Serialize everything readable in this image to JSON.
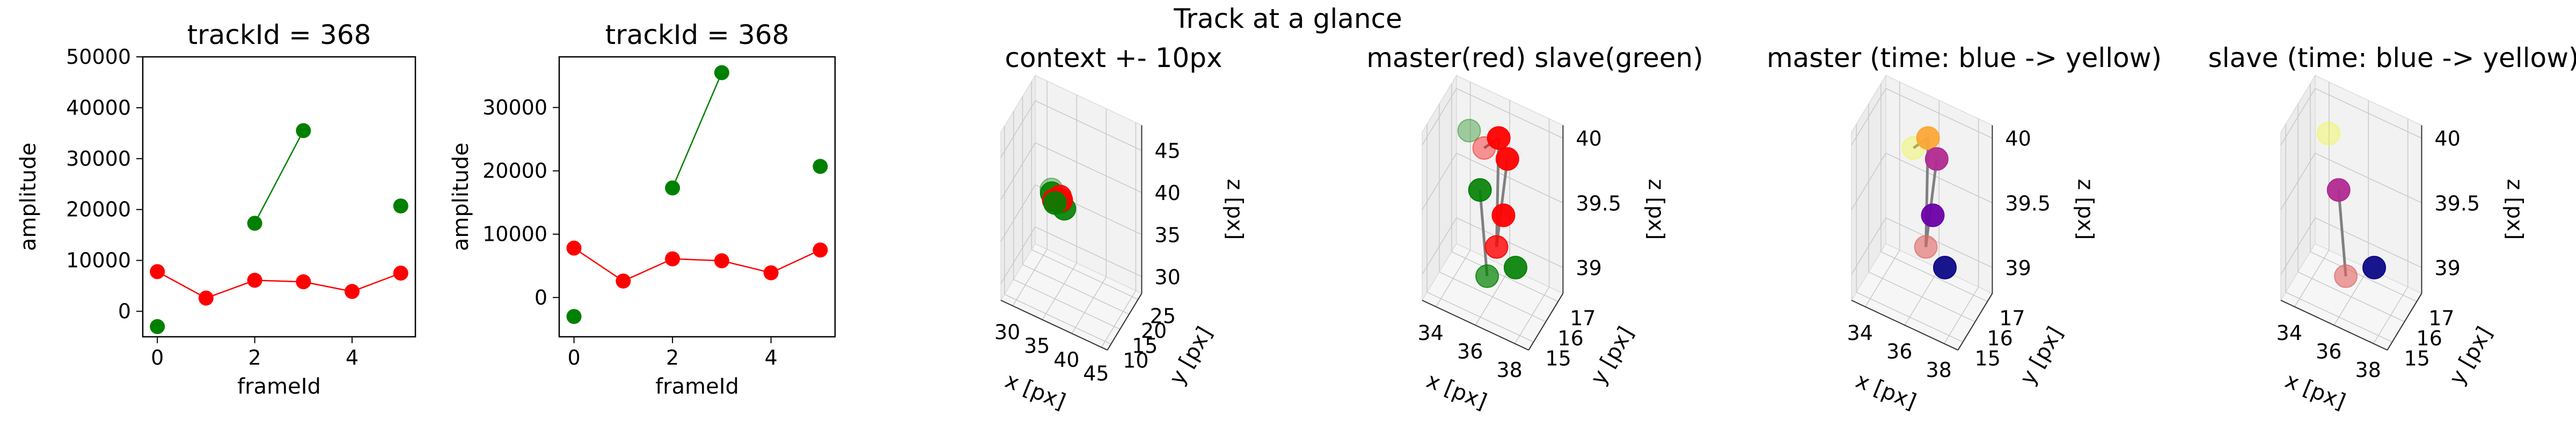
{
  "figure": {
    "suptitle": "Track at a glance"
  },
  "chart_data": [
    {
      "type": "line",
      "title": "trackId = 368",
      "xlabel": "frameId",
      "ylabel": "amplitude",
      "xlim": [
        -0.3,
        5.3
      ],
      "ylim": [
        -5000,
        50000
      ],
      "xticks": [
        0,
        2,
        4
      ],
      "yticks": [
        0,
        10000,
        20000,
        30000,
        40000,
        50000
      ],
      "series": [
        {
          "color": "#ff0000",
          "x": [
            0,
            1,
            2,
            3,
            4,
            5
          ],
          "y": [
            7800,
            2600,
            6100,
            5800,
            3900,
            7500
          ],
          "connected_segments": [
            [
              0,
              5
            ]
          ]
        },
        {
          "color": "#008000",
          "x": [
            0,
            2,
            3,
            5
          ],
          "y": [
            -3000,
            17300,
            35500,
            20700
          ],
          "connected_segments": [
            [
              1,
              2
            ]
          ]
        }
      ]
    },
    {
      "type": "line",
      "title": "trackId = 368",
      "xlabel": "frameId",
      "ylabel": "amplitude",
      "xlim": [
        -0.3,
        5.3
      ],
      "ylim": [
        -6200,
        38000
      ],
      "xticks": [
        0,
        2,
        4
      ],
      "yticks": [
        0,
        10000,
        20000,
        30000
      ],
      "series": [
        {
          "color": "#ff0000",
          "x": [
            0,
            1,
            2,
            3,
            4,
            5
          ],
          "y": [
            7800,
            2600,
            6100,
            5800,
            3900,
            7500
          ],
          "connected_segments": [
            [
              0,
              5
            ]
          ]
        },
        {
          "color": "#008000",
          "x": [
            0,
            2,
            3,
            5
          ],
          "y": [
            -3000,
            17300,
            35500,
            20700
          ],
          "connected_segments": [
            [
              1,
              2
            ]
          ]
        }
      ]
    },
    {
      "type": "scatter3d",
      "title": "context +- 10px",
      "xlabel": "x [px]",
      "ylabel": "y [px]",
      "zlabel": "z [px]",
      "xlim": [
        28,
        46
      ],
      "ylim": [
        8,
        27
      ],
      "zlim": [
        28,
        48
      ],
      "xticks": [
        30,
        35,
        40,
        45
      ],
      "yticks": [
        10,
        15,
        20,
        25
      ],
      "zticks": [
        30,
        35,
        40,
        45
      ],
      "points": [
        {
          "x": 35.5,
          "y": 16.2,
          "z": 39.9,
          "color": "#ff0000",
          "alpha": 0.9
        },
        {
          "x": 34.5,
          "y": 16.0,
          "z": 39.2,
          "color": "#ff0000",
          "alpha": 0.9
        },
        {
          "x": 35.8,
          "y": 15.6,
          "z": 39.6,
          "color": "#ff0000",
          "alpha": 0.9
        },
        {
          "x": 36.0,
          "y": 15.2,
          "z": 40.0,
          "color": "#ff0000",
          "alpha": 0.9
        },
        {
          "x": 36.5,
          "y": 15.3,
          "z": 39.1,
          "color": "#008000",
          "alpha": 0.9
        },
        {
          "x": 35.0,
          "y": 15.0,
          "z": 39.4,
          "color": "#008000",
          "alpha": 0.9
        },
        {
          "x": 34.0,
          "y": 16.5,
          "z": 39.7,
          "color": "#008000",
          "alpha": 0.9
        },
        {
          "x": 33.8,
          "y": 17.0,
          "z": 39.9,
          "color": "#008000",
          "alpha": 0.35
        }
      ],
      "lines": []
    },
    {
      "type": "scatter3d",
      "title": "master(red) slave(green)",
      "xlabel": "x [px]",
      "ylabel": "y [px]",
      "zlabel": "z [px]",
      "xlim": [
        33.3,
        38.7
      ],
      "ylim": [
        14.6,
        17.4
      ],
      "zlim": [
        38.8,
        40.1
      ],
      "xticks": [
        34,
        36,
        38
      ],
      "yticks": [
        15,
        16,
        17
      ],
      "zticks": [
        39.0,
        39.5,
        40.0
      ],
      "points": [
        {
          "x": 36.0,
          "y": 16.5,
          "z": 39.95,
          "color": "#ff0000",
          "alpha": 0.95
        },
        {
          "x": 35.2,
          "y": 16.6,
          "z": 39.8,
          "color": "#ff0000",
          "alpha": 0.4
        },
        {
          "x": 37.0,
          "y": 15.6,
          "z": 40.0,
          "color": "#ff0000",
          "alpha": 0.95
        },
        {
          "x": 36.8,
          "y": 15.6,
          "z": 39.55,
          "color": "#ff0000",
          "alpha": 0.95
        },
        {
          "x": 36.2,
          "y": 16.0,
          "z": 39.2,
          "color": "#ff0000",
          "alpha": 0.8
        },
        {
          "x": 37.6,
          "y": 15.3,
          "z": 39.25,
          "color": "#008000",
          "alpha": 0.9
        },
        {
          "x": 34.5,
          "y": 16.5,
          "z": 39.9,
          "color": "#008000",
          "alpha": 0.35
        },
        {
          "x": 34.8,
          "y": 16.9,
          "z": 39.4,
          "color": "#008000",
          "alpha": 0.9
        },
        {
          "x": 35.6,
          "y": 16.2,
          "z": 38.9,
          "color": "#008000",
          "alpha": 0.7
        }
      ],
      "lines": [
        {
          "from": [
            36.0,
            16.5,
            39.95
          ],
          "to": [
            35.2,
            16.6,
            39.8
          ],
          "color": "#808080"
        },
        {
          "from": [
            36.0,
            16.5,
            39.95
          ],
          "to": [
            36.2,
            16.0,
            39.2
          ],
          "color": "#808080"
        },
        {
          "from": [
            37.0,
            15.6,
            40.0
          ],
          "to": [
            36.2,
            16.0,
            39.2
          ],
          "color": "#808080"
        },
        {
          "from": [
            34.8,
            16.9,
            39.4
          ],
          "to": [
            35.6,
            16.2,
            38.9
          ],
          "color": "#808080"
        }
      ]
    },
    {
      "type": "scatter3d",
      "title": "master (time: blue -> yellow)",
      "xlabel": "x [px]",
      "ylabel": "y [px]",
      "zlabel": "z [px]",
      "xlim": [
        33.3,
        38.7
      ],
      "ylim": [
        14.6,
        17.4
      ],
      "zlim": [
        38.8,
        40.1
      ],
      "xticks": [
        34,
        36,
        38
      ],
      "yticks": [
        15,
        16,
        17
      ],
      "zticks": [
        39.0,
        39.5,
        40.0
      ],
      "points": [
        {
          "x": 36.0,
          "y": 16.5,
          "z": 39.95,
          "color": "#fca636",
          "alpha": 0.95
        },
        {
          "x": 35.2,
          "y": 16.6,
          "z": 39.8,
          "color": "#f0f921",
          "alpha": 0.35
        },
        {
          "x": 37.0,
          "y": 15.6,
          "z": 40.0,
          "color": "#b12a90",
          "alpha": 0.95
        },
        {
          "x": 36.8,
          "y": 15.6,
          "z": 39.55,
          "color": "#6a00a8",
          "alpha": 0.95
        },
        {
          "x": 37.6,
          "y": 15.3,
          "z": 39.25,
          "color": "#0d0887",
          "alpha": 0.95
        },
        {
          "x": 36.2,
          "y": 16.0,
          "z": 39.2,
          "color": "#e16462",
          "alpha": 0.6
        }
      ],
      "lines": [
        {
          "from": [
            36.0,
            16.5,
            39.95
          ],
          "to": [
            35.2,
            16.6,
            39.8
          ],
          "color": "#808080"
        },
        {
          "from": [
            36.0,
            16.5,
            39.95
          ],
          "to": [
            36.2,
            16.0,
            39.2
          ],
          "color": "#808080"
        },
        {
          "from": [
            37.0,
            15.6,
            40.0
          ],
          "to": [
            36.2,
            16.0,
            39.2
          ],
          "color": "#808080"
        }
      ]
    },
    {
      "type": "scatter3d",
      "title": "slave (time: blue -> yellow)",
      "xlabel": "x [px]",
      "ylabel": "y [px]",
      "zlabel": "z [px]",
      "xlim": [
        33.3,
        38.7
      ],
      "ylim": [
        14.6,
        17.4
      ],
      "zlim": [
        38.8,
        40.1
      ],
      "xticks": [
        34,
        36,
        38
      ],
      "yticks": [
        15,
        16,
        17
      ],
      "zticks": [
        39.0,
        39.5,
        40.0
      ],
      "points": [
        {
          "x": 34.6,
          "y": 16.4,
          "z": 39.9,
          "color": "#f0f921",
          "alpha": 0.35
        },
        {
          "x": 34.8,
          "y": 16.9,
          "z": 39.4,
          "color": "#b12a90",
          "alpha": 0.95
        },
        {
          "x": 35.6,
          "y": 16.2,
          "z": 38.9,
          "color": "#e16462",
          "alpha": 0.6
        },
        {
          "x": 37.6,
          "y": 15.3,
          "z": 39.25,
          "color": "#0d0887",
          "alpha": 0.95
        }
      ],
      "lines": [
        {
          "from": [
            34.8,
            16.9,
            39.4
          ],
          "to": [
            35.6,
            16.2,
            38.9
          ],
          "color": "#808080"
        }
      ]
    }
  ]
}
